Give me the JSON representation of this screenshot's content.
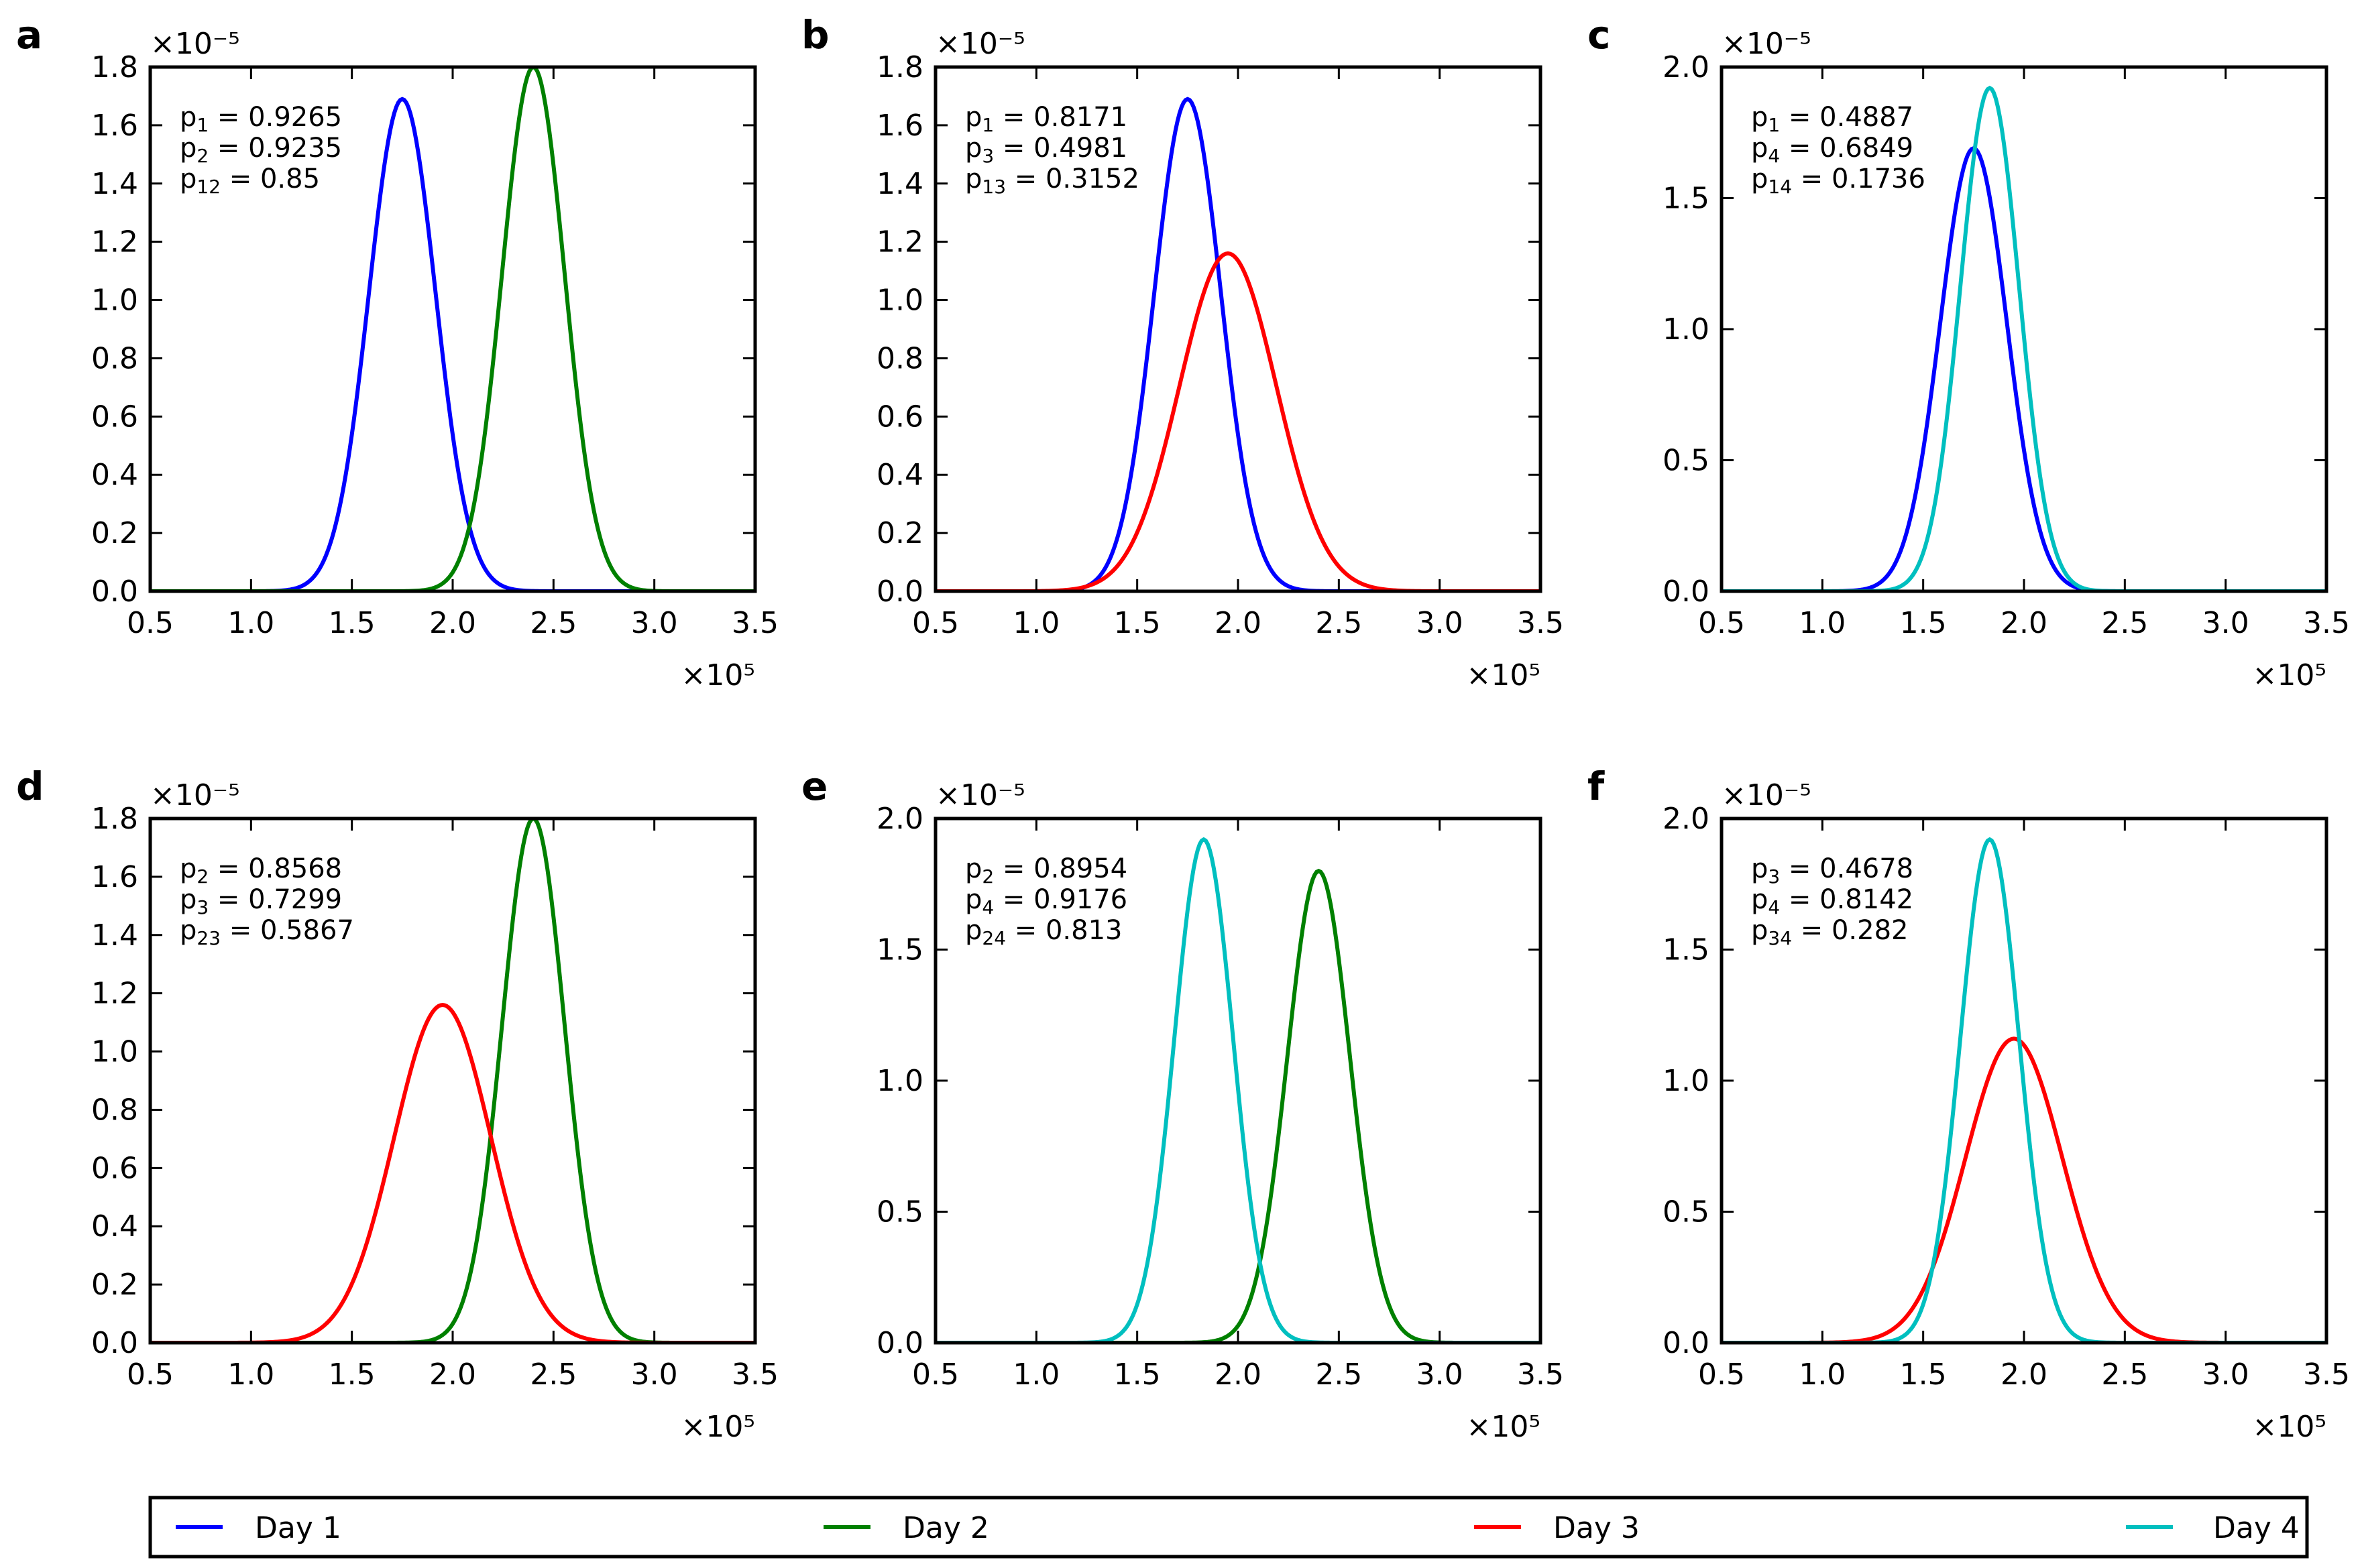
{
  "legend": {
    "entries": [
      {
        "label": "Day 1",
        "color": "#0000ff"
      },
      {
        "label": "Day 2",
        "color": "#008000"
      },
      {
        "label": "Day 3",
        "color": "#ff0000"
      },
      {
        "label": "Day 4",
        "color": "#00bfbf"
      }
    ]
  },
  "chart_data": [
    {
      "panel": "a",
      "type": "line",
      "x_multiplier": "×10⁵",
      "y_multiplier": "×10⁻⁵",
      "xlim": [
        0.5,
        3.5
      ],
      "ylim": [
        0,
        1.8
      ],
      "xticks": [
        "0.5",
        "1.0",
        "1.5",
        "2.0",
        "2.5",
        "3.0",
        "3.5"
      ],
      "yticks": [
        "0.0",
        "0.2",
        "0.4",
        "0.6",
        "0.8",
        "1.0",
        "1.2",
        "1.4",
        "1.6",
        "1.8"
      ],
      "grid": false,
      "annotations": [
        {
          "sym": "p",
          "sub": "1",
          "value": "0.9265"
        },
        {
          "sym": "p",
          "sub": "2",
          "value": "0.9235"
        },
        {
          "sym": "p",
          "sub": "12",
          "value": "0.85"
        }
      ],
      "series": [
        {
          "name": "Day 1",
          "color": "#0000ff",
          "mean": 1.75,
          "peak": 1.69
        },
        {
          "name": "Day 2",
          "color": "#008000",
          "mean": 2.4,
          "peak": 1.8
        }
      ]
    },
    {
      "panel": "b",
      "type": "line",
      "x_multiplier": "×10⁵",
      "y_multiplier": "×10⁻⁵",
      "xlim": [
        0.5,
        3.5
      ],
      "ylim": [
        0,
        1.8
      ],
      "xticks": [
        "0.5",
        "1.0",
        "1.5",
        "2.0",
        "2.5",
        "3.0",
        "3.5"
      ],
      "yticks": [
        "0.0",
        "0.2",
        "0.4",
        "0.6",
        "0.8",
        "1.0",
        "1.2",
        "1.4",
        "1.6",
        "1.8"
      ],
      "grid": false,
      "annotations": [
        {
          "sym": "p",
          "sub": "1",
          "value": "0.8171"
        },
        {
          "sym": "p",
          "sub": "3",
          "value": "0.4981"
        },
        {
          "sym": "p",
          "sub": "13",
          "value": "0.3152"
        }
      ],
      "series": [
        {
          "name": "Day 1",
          "color": "#0000ff",
          "mean": 1.75,
          "peak": 1.69
        },
        {
          "name": "Day 3",
          "color": "#ff0000",
          "mean": 1.95,
          "peak": 1.16
        }
      ]
    },
    {
      "panel": "c",
      "type": "line",
      "x_multiplier": "×10⁵",
      "y_multiplier": "×10⁻⁵",
      "xlim": [
        0.5,
        3.5
      ],
      "ylim": [
        0,
        2.0
      ],
      "xticks": [
        "0.5",
        "1.0",
        "1.5",
        "2.0",
        "2.5",
        "3.0",
        "3.5"
      ],
      "yticks": [
        "0.0",
        "0.5",
        "1.0",
        "1.5",
        "2.0"
      ],
      "grid": false,
      "annotations": [
        {
          "sym": "p",
          "sub": "1",
          "value": "0.4887"
        },
        {
          "sym": "p",
          "sub": "4",
          "value": "0.6849"
        },
        {
          "sym": "p",
          "sub": "14",
          "value": "0.1736"
        }
      ],
      "series": [
        {
          "name": "Day 1",
          "color": "#0000ff",
          "mean": 1.75,
          "peak": 1.69
        },
        {
          "name": "Day 4",
          "color": "#00bfbf",
          "mean": 1.83,
          "peak": 1.92
        }
      ]
    },
    {
      "panel": "d",
      "type": "line",
      "x_multiplier": "×10⁵",
      "y_multiplier": "×10⁻⁵",
      "xlim": [
        0.5,
        3.5
      ],
      "ylim": [
        0,
        1.8
      ],
      "xticks": [
        "0.5",
        "1.0",
        "1.5",
        "2.0",
        "2.5",
        "3.0",
        "3.5"
      ],
      "yticks": [
        "0.0",
        "0.2",
        "0.4",
        "0.6",
        "0.8",
        "1.0",
        "1.2",
        "1.4",
        "1.6",
        "1.8"
      ],
      "grid": false,
      "annotations": [
        {
          "sym": "p",
          "sub": "2",
          "value": "0.8568"
        },
        {
          "sym": "p",
          "sub": "3",
          "value": "0.7299"
        },
        {
          "sym": "p",
          "sub": "23",
          "value": "0.5867"
        }
      ],
      "series": [
        {
          "name": "Day 2",
          "color": "#008000",
          "mean": 2.4,
          "peak": 1.8
        },
        {
          "name": "Day 3",
          "color": "#ff0000",
          "mean": 1.95,
          "peak": 1.16
        }
      ]
    },
    {
      "panel": "e",
      "type": "line",
      "x_multiplier": "×10⁵",
      "y_multiplier": "×10⁻⁵",
      "xlim": [
        0.5,
        3.5
      ],
      "ylim": [
        0,
        2.0
      ],
      "xticks": [
        "0.5",
        "1.0",
        "1.5",
        "2.0",
        "2.5",
        "3.0",
        "3.5"
      ],
      "yticks": [
        "0.0",
        "0.5",
        "1.0",
        "1.5",
        "2.0"
      ],
      "grid": false,
      "annotations": [
        {
          "sym": "p",
          "sub": "2",
          "value": "0.8954"
        },
        {
          "sym": "p",
          "sub": "4",
          "value": "0.9176"
        },
        {
          "sym": "p",
          "sub": "24",
          "value": "0.813"
        }
      ],
      "series": [
        {
          "name": "Day 2",
          "color": "#008000",
          "mean": 2.4,
          "peak": 1.8
        },
        {
          "name": "Day 4",
          "color": "#00bfbf",
          "mean": 1.83,
          "peak": 1.92
        }
      ]
    },
    {
      "panel": "f",
      "type": "line",
      "x_multiplier": "×10⁵",
      "y_multiplier": "×10⁻⁵",
      "xlim": [
        0.5,
        3.5
      ],
      "ylim": [
        0,
        2.0
      ],
      "xticks": [
        "0.5",
        "1.0",
        "1.5",
        "2.0",
        "2.5",
        "3.0",
        "3.5"
      ],
      "yticks": [
        "0.0",
        "0.5",
        "1.0",
        "1.5",
        "2.0"
      ],
      "grid": false,
      "annotations": [
        {
          "sym": "p",
          "sub": "3",
          "value": "0.4678"
        },
        {
          "sym": "p",
          "sub": "4",
          "value": "0.8142"
        },
        {
          "sym": "p",
          "sub": "34",
          "value": "0.282"
        }
      ],
      "series": [
        {
          "name": "Day 3",
          "color": "#ff0000",
          "mean": 1.95,
          "peak": 1.16
        },
        {
          "name": "Day 4",
          "color": "#00bfbf",
          "mean": 1.83,
          "peak": 1.92
        }
      ]
    }
  ]
}
